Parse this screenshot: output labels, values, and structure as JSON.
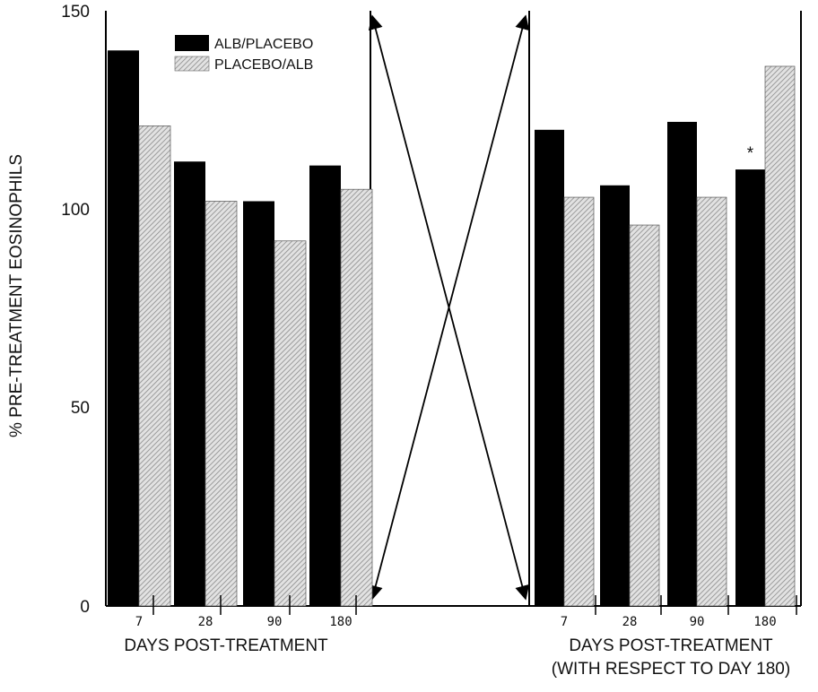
{
  "chart_data": {
    "type": "bar",
    "ylabel": "% PRE-TREATMENT EOSINOPHILS",
    "ylim": [
      0,
      150
    ],
    "yticks": [
      "0",
      "50",
      "100",
      "150"
    ],
    "legend": {
      "placement": "top-left",
      "entries": [
        {
          "name": "ALB/PLACEBO",
          "color": "#000000",
          "pattern": "solid"
        },
        {
          "name": "PLACEBO/ALB",
          "color": "#bdbdbd",
          "pattern": "hatched"
        }
      ]
    },
    "panels": [
      {
        "xlabel": "DAYS POST-TREATMENT",
        "xlabel2": "",
        "categories": [
          "7",
          "28",
          "90",
          "180"
        ],
        "series": [
          {
            "name": "ALB/PLACEBO",
            "values": [
              140,
              112,
              102,
              111
            ]
          },
          {
            "name": "PLACEBO/ALB",
            "values": [
              121,
              102,
              92,
              105
            ]
          }
        ]
      },
      {
        "xlabel": "DAYS POST-TREATMENT",
        "xlabel2": "(WITH RESPECT TO DAY 180)",
        "categories": [
          "7",
          "28",
          "90",
          "180"
        ],
        "series": [
          {
            "name": "ALB/PLACEBO",
            "values": [
              120,
              106,
              122,
              110
            ]
          },
          {
            "name": "PLACEBO/ALB",
            "values": [
              103,
              96,
              103,
              136
            ]
          }
        ]
      }
    ],
    "annotations": [
      {
        "text": "*",
        "panel": 1,
        "category": "180",
        "series": "ALB/PLACEBO"
      }
    ],
    "grid": false
  }
}
